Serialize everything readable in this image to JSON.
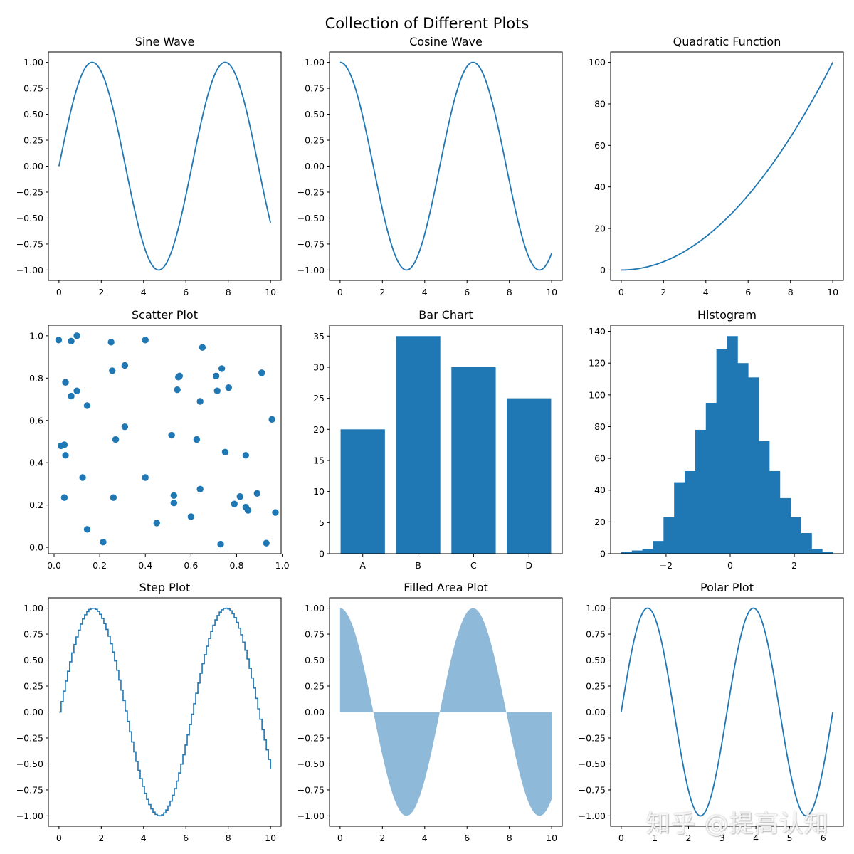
{
  "figure": {
    "suptitle": "Collection of Different Plots",
    "color": "#1f77b4",
    "fill_color": "#8fb9d9"
  },
  "watermark": {
    "text": "知乎 @提高认知"
  },
  "chart_data": [
    {
      "type": "line",
      "title": "Sine Wave",
      "function": "sin(x)",
      "x_range": [
        0,
        10
      ],
      "xlim": [
        -0.5,
        10.5
      ],
      "ylim": [
        -1.1,
        1.1
      ],
      "xticks": [
        0,
        2,
        4,
        6,
        8,
        10
      ],
      "yticks": [
        -1.0,
        -0.75,
        -0.5,
        -0.25,
        0.0,
        0.25,
        0.5,
        0.75,
        1.0
      ],
      "xticklabels": [
        "0",
        "2",
        "4",
        "6",
        "8",
        "10"
      ],
      "yticklabels": [
        "−1.00",
        "−0.75",
        "−0.50",
        "−0.25",
        "0.00",
        "0.25",
        "0.50",
        "0.75",
        "1.00"
      ]
    },
    {
      "type": "line",
      "title": "Cosine Wave",
      "function": "cos(x)",
      "x_range": [
        0,
        10
      ],
      "xlim": [
        -0.5,
        10.5
      ],
      "ylim": [
        -1.1,
        1.1
      ],
      "xticks": [
        0,
        2,
        4,
        6,
        8,
        10
      ],
      "yticks": [
        -1.0,
        -0.75,
        -0.5,
        -0.25,
        0.0,
        0.25,
        0.5,
        0.75,
        1.0
      ],
      "xticklabels": [
        "0",
        "2",
        "4",
        "6",
        "8",
        "10"
      ],
      "yticklabels": [
        "−1.00",
        "−0.75",
        "−0.50",
        "−0.25",
        "0.00",
        "0.25",
        "0.50",
        "0.75",
        "1.00"
      ]
    },
    {
      "type": "line",
      "title": "Quadratic Function",
      "function": "x^2",
      "x_range": [
        0,
        10
      ],
      "xlim": [
        -0.5,
        10.5
      ],
      "ylim": [
        -5,
        105
      ],
      "xticks": [
        0,
        2,
        4,
        6,
        8,
        10
      ],
      "yticks": [
        0,
        20,
        40,
        60,
        80,
        100
      ],
      "xticklabels": [
        "0",
        "2",
        "4",
        "6",
        "8",
        "10"
      ],
      "yticklabels": [
        "0",
        "20",
        "40",
        "60",
        "80",
        "100"
      ]
    },
    {
      "type": "scatter",
      "title": "Scatter Plot",
      "xlim": [
        -0.025,
        0.995
      ],
      "ylim": [
        -0.03,
        1.05
      ],
      "xticks": [
        0.0,
        0.2,
        0.4,
        0.6,
        0.8,
        1.0
      ],
      "yticks": [
        0.0,
        0.2,
        0.4,
        0.6,
        0.8,
        1.0
      ],
      "xticklabels": [
        "0.0",
        "0.2",
        "0.4",
        "0.6",
        "0.8",
        "1.0"
      ],
      "yticklabels": [
        "0.0",
        "0.2",
        "0.4",
        "0.6",
        "0.8",
        "1.0"
      ],
      "points": [
        [
          0.02,
          0.98
        ],
        [
          0.1,
          1.0
        ],
        [
          0.075,
          0.975
        ],
        [
          0.25,
          0.97
        ],
        [
          0.4,
          0.98
        ],
        [
          0.65,
          0.945
        ],
        [
          0.255,
          0.835
        ],
        [
          0.31,
          0.86
        ],
        [
          0.05,
          0.78
        ],
        [
          0.1,
          0.74
        ],
        [
          0.075,
          0.715
        ],
        [
          0.145,
          0.67
        ],
        [
          0.545,
          0.805
        ],
        [
          0.55,
          0.81
        ],
        [
          0.54,
          0.745
        ],
        [
          0.71,
          0.81
        ],
        [
          0.735,
          0.845
        ],
        [
          0.765,
          0.755
        ],
        [
          0.715,
          0.74
        ],
        [
          0.64,
          0.69
        ],
        [
          0.91,
          0.825
        ],
        [
          0.955,
          0.605
        ],
        [
          0.31,
          0.57
        ],
        [
          0.27,
          0.51
        ],
        [
          0.515,
          0.53
        ],
        [
          0.625,
          0.51
        ],
        [
          0.03,
          0.48
        ],
        [
          0.045,
          0.485
        ],
        [
          0.05,
          0.435
        ],
        [
          0.75,
          0.45
        ],
        [
          0.84,
          0.435
        ],
        [
          0.125,
          0.33
        ],
        [
          0.4,
          0.33
        ],
        [
          0.045,
          0.235
        ],
        [
          0.26,
          0.235
        ],
        [
          0.525,
          0.245
        ],
        [
          0.64,
          0.275
        ],
        [
          0.525,
          0.21
        ],
        [
          0.815,
          0.24
        ],
        [
          0.79,
          0.205
        ],
        [
          0.89,
          0.255
        ],
        [
          0.84,
          0.19
        ],
        [
          0.85,
          0.175
        ],
        [
          0.97,
          0.165
        ],
        [
          0.6,
          0.145
        ],
        [
          0.45,
          0.115
        ],
        [
          0.145,
          0.085
        ],
        [
          0.215,
          0.025
        ],
        [
          0.73,
          0.015
        ],
        [
          0.93,
          0.02
        ]
      ]
    },
    {
      "type": "bar",
      "title": "Bar Chart",
      "categories": [
        "A",
        "B",
        "C",
        "D"
      ],
      "values": [
        20,
        35,
        30,
        25
      ],
      "xlim": [
        -0.6,
        3.6
      ],
      "ylim": [
        0,
        36.75
      ],
      "yticks": [
        0,
        5,
        10,
        15,
        20,
        25,
        30,
        35
      ],
      "yticklabels": [
        "0",
        "5",
        "10",
        "15",
        "20",
        "25",
        "30",
        "35"
      ]
    },
    {
      "type": "histogram",
      "title": "Histogram",
      "bin_edges": [
        -3.4,
        -3.07,
        -2.74,
        -2.41,
        -2.08,
        -1.75,
        -1.42,
        -1.09,
        -0.76,
        -0.43,
        -0.1,
        0.23,
        0.56,
        0.89,
        1.22,
        1.55,
        1.88,
        2.21,
        2.54,
        2.87,
        3.2
      ],
      "counts": [
        1,
        2,
        3,
        8,
        23,
        45,
        52,
        78,
        95,
        129,
        137,
        120,
        111,
        71,
        52,
        35,
        23,
        13,
        3,
        1
      ],
      "xlim": [
        -3.73,
        3.53
      ],
      "ylim": [
        0,
        143.85
      ],
      "xticks": [
        -2,
        0,
        2
      ],
      "yticks": [
        0,
        20,
        40,
        60,
        80,
        100,
        120,
        140
      ],
      "xticklabels": [
        "−2",
        "0",
        "2"
      ],
      "yticklabels": [
        "0",
        "20",
        "40",
        "60",
        "80",
        "100",
        "120",
        "140"
      ]
    },
    {
      "type": "step",
      "title": "Step Plot",
      "function": "sin(x)",
      "steps": 100,
      "x_range": [
        0,
        10
      ],
      "xlim": [
        -0.5,
        10.5
      ],
      "ylim": [
        -1.1,
        1.1
      ],
      "xticks": [
        0,
        2,
        4,
        6,
        8,
        10
      ],
      "yticks": [
        -1.0,
        -0.75,
        -0.5,
        -0.25,
        0.0,
        0.25,
        0.5,
        0.75,
        1.0
      ],
      "xticklabels": [
        "0",
        "2",
        "4",
        "6",
        "8",
        "10"
      ],
      "yticklabels": [
        "−1.00",
        "−0.75",
        "−0.50",
        "−0.25",
        "0.00",
        "0.25",
        "0.50",
        "0.75",
        "1.00"
      ]
    },
    {
      "type": "area",
      "title": "Filled Area Plot",
      "function": "cos(x)",
      "x_range": [
        0,
        10
      ],
      "xlim": [
        -0.5,
        10.5
      ],
      "ylim": [
        -1.1,
        1.1
      ],
      "xticks": [
        0,
        2,
        4,
        6,
        8,
        10
      ],
      "yticks": [
        -1.0,
        -0.75,
        -0.5,
        -0.25,
        0.0,
        0.25,
        0.5,
        0.75,
        1.0
      ],
      "xticklabels": [
        "0",
        "2",
        "4",
        "6",
        "8",
        "10"
      ],
      "yticklabels": [
        "−1.00",
        "−0.75",
        "−0.50",
        "−0.25",
        "0.00",
        "0.25",
        "0.50",
        "0.75",
        "1.00"
      ]
    },
    {
      "type": "line",
      "title": "Polar Plot",
      "function": "sin(2x)",
      "x_range": [
        0,
        6.2832
      ],
      "xlim": [
        -0.314,
        6.597
      ],
      "ylim": [
        -1.1,
        1.1
      ],
      "xticks": [
        0,
        1,
        2,
        3,
        4,
        5,
        6
      ],
      "yticks": [
        -1.0,
        -0.75,
        -0.5,
        -0.25,
        0.0,
        0.25,
        0.5,
        0.75,
        1.0
      ],
      "xticklabels": [
        "0",
        "1",
        "2",
        "3",
        "4",
        "5",
        "6"
      ],
      "yticklabels": [
        "−1.00",
        "−0.75",
        "−0.50",
        "−0.25",
        "0.00",
        "0.25",
        "0.50",
        "0.75",
        "1.00"
      ]
    }
  ]
}
